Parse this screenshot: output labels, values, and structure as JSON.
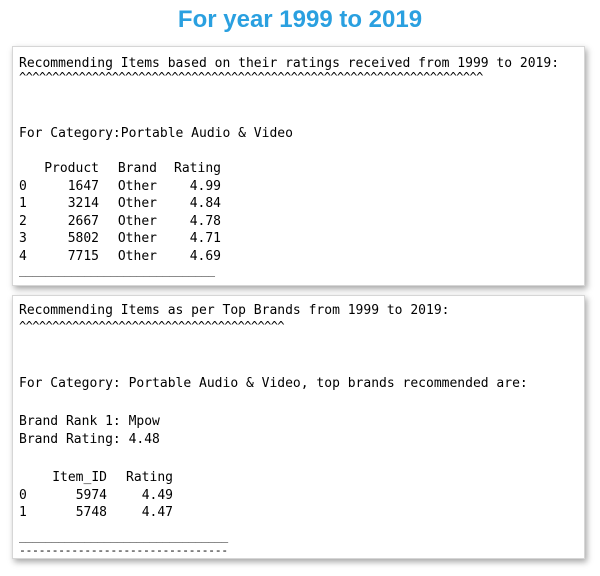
{
  "page": {
    "title": "For year 1999 to 2019"
  },
  "section1": {
    "heading": "Recommending Items based on their ratings received from 1999 to 2019:",
    "carets": "^^^^^^^^^^^^^^^^^^^^^^^^^^^^^^^^^^^^^^^^^^^^^^^^^^^^^^^^^^^^^^^^^^^^^^",
    "category": "For Category:Portable Audio & Video",
    "columns": [
      "Product",
      "Brand",
      "Rating"
    ],
    "rows": [
      {
        "index": "0",
        "product": "1647",
        "brand": "Other",
        "rating": "4.99"
      },
      {
        "index": "1",
        "product": "3214",
        "brand": "Other",
        "rating": "4.84"
      },
      {
        "index": "2",
        "product": "2667",
        "brand": "Other",
        "rating": "4.78"
      },
      {
        "index": "3",
        "product": "5802",
        "brand": "Other",
        "rating": "4.71"
      },
      {
        "index": "4",
        "product": "7715",
        "brand": "Other",
        "rating": "4.69"
      }
    ],
    "underline": "______________________________"
  },
  "section2": {
    "heading": "Recommending Items as per Top Brands from 1999 to 2019:",
    "carets": "^^^^^^^^^^^^^^^^^^^^^^^^^^^^^^^^^^^^^^^^",
    "category": "For Category: Portable Audio & Video, top brands recommended are:",
    "brand_rank": "Brand Rank 1: Mpow",
    "brand_rating": "Brand Rating: 4.48",
    "columns": [
      "Item_ID",
      "Rating"
    ],
    "rows": [
      {
        "index": "0",
        "item_id": "5974",
        "rating": "4.49"
      },
      {
        "index": "1",
        "item_id": "5748",
        "rating": "4.47"
      }
    ],
    "underline": "________________________________",
    "dashes": "--------------------------------"
  }
}
